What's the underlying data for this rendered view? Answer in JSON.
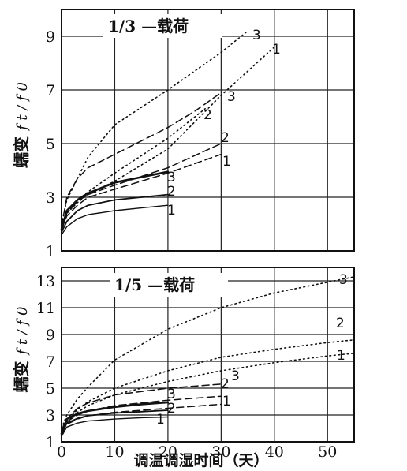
{
  "chart_data": [
    {
      "type": "line",
      "title": "1/3 —载荷",
      "ylabel": "蠕变 f_t / f_0",
      "ylabel_main": "蠕变",
      "ylabel_math": "f t / f 0",
      "xlim": [
        0,
        55
      ],
      "ylim": [
        1,
        10
      ],
      "yticks": [
        1,
        3,
        5,
        7,
        9
      ],
      "series": [
        {
          "name": "1",
          "style": "solid-thin",
          "x": [
            0,
            1,
            3,
            5,
            10,
            15,
            20
          ],
          "y": [
            1.6,
            1.9,
            2.2,
            2.35,
            2.5,
            2.6,
            2.7
          ]
        },
        {
          "name": "2",
          "style": "solid",
          "x": [
            0,
            1,
            3,
            5,
            10,
            15,
            20
          ],
          "y": [
            1.7,
            2.1,
            2.5,
            2.7,
            2.9,
            3.0,
            3.1
          ]
        },
        {
          "name": "3",
          "style": "solid-thick",
          "x": [
            0,
            1,
            3,
            5,
            10,
            15,
            20
          ],
          "y": [
            1.8,
            2.5,
            2.9,
            3.15,
            3.55,
            3.75,
            3.95
          ]
        },
        {
          "name": "1",
          "style": "dashed",
          "x": [
            0,
            1,
            3,
            5,
            10,
            20,
            30
          ],
          "y": [
            1.8,
            2.3,
            2.7,
            3.0,
            3.3,
            3.9,
            4.6
          ]
        },
        {
          "name": "2",
          "style": "dashed",
          "x": [
            0,
            1,
            3,
            5,
            10,
            20,
            30
          ],
          "y": [
            1.9,
            2.4,
            2.85,
            3.1,
            3.45,
            4.1,
            5.0
          ]
        },
        {
          "name": "3",
          "style": "dashed",
          "x": [
            0,
            1,
            3,
            5,
            10,
            15,
            20,
            25,
            30
          ],
          "y": [
            1.9,
            3.0,
            3.7,
            4.1,
            4.6,
            5.1,
            5.6,
            6.2,
            6.9
          ]
        },
        {
          "name": "1",
          "style": "dotted",
          "x": [
            0,
            1,
            3,
            5,
            10,
            20,
            30,
            40
          ],
          "y": [
            2.0,
            2.4,
            2.8,
            3.1,
            3.6,
            4.8,
            6.8,
            8.6
          ]
        },
        {
          "name": "2",
          "style": "dotted",
          "x": [
            0,
            1,
            3,
            5,
            10,
            20,
            27
          ],
          "y": [
            2.0,
            2.4,
            2.9,
            3.2,
            3.9,
            5.2,
            6.3
          ]
        },
        {
          "name": "3",
          "style": "dotted",
          "x": [
            0,
            1,
            3,
            5,
            10,
            20,
            30,
            35
          ],
          "y": [
            2.0,
            2.9,
            3.7,
            4.5,
            5.7,
            7.0,
            8.4,
            9.2
          ]
        }
      ],
      "annotations": [
        "1",
        "2",
        "3",
        "1",
        "2",
        "3",
        "2",
        "3",
        "1"
      ]
    },
    {
      "type": "line",
      "title": "1/5 —载荷",
      "ylabel": "蠕变 f_t / f_0",
      "ylabel_main": "蠕变",
      "ylabel_math": "f t / f 0",
      "xlabel": "调温调湿时间（天）",
      "xlim": [
        0,
        55
      ],
      "ylim": [
        1,
        14
      ],
      "xticks": [
        0,
        10,
        20,
        30,
        40,
        50
      ],
      "yticks": [
        1,
        3,
        5,
        7,
        9,
        11,
        13
      ],
      "series": [
        {
          "name": "1",
          "style": "solid-thin",
          "x": [
            0,
            1,
            3,
            5,
            10,
            15,
            20
          ],
          "y": [
            1.4,
            2.1,
            2.4,
            2.55,
            2.7,
            2.8,
            2.85
          ]
        },
        {
          "name": "2",
          "style": "solid",
          "x": [
            0,
            1,
            3,
            5,
            10,
            15,
            20
          ],
          "y": [
            1.5,
            2.4,
            2.75,
            2.95,
            3.15,
            3.25,
            3.35
          ]
        },
        {
          "name": "3",
          "style": "solid-thick",
          "x": [
            0,
            1,
            3,
            5,
            10,
            15,
            20
          ],
          "y": [
            1.6,
            2.7,
            3.1,
            3.3,
            3.6,
            3.8,
            3.95
          ]
        },
        {
          "name": "1",
          "style": "dashed",
          "x": [
            0,
            1,
            3,
            5,
            10,
            20,
            30
          ],
          "y": [
            1.7,
            2.3,
            2.7,
            2.95,
            3.2,
            3.5,
            3.8
          ]
        },
        {
          "name": "2",
          "style": "dashed",
          "x": [
            0,
            1,
            3,
            5,
            10,
            20,
            30
          ],
          "y": [
            1.8,
            2.5,
            3.0,
            3.3,
            3.7,
            4.1,
            4.4
          ]
        },
        {
          "name": "3",
          "style": "dashed",
          "x": [
            0,
            1,
            3,
            5,
            10,
            20,
            30
          ],
          "y": [
            1.9,
            2.7,
            3.5,
            3.9,
            4.5,
            5.0,
            5.3
          ]
        },
        {
          "name": "1",
          "style": "dotted",
          "x": [
            0,
            1,
            3,
            5,
            10,
            20,
            30,
            40,
            50,
            55
          ],
          "y": [
            2.0,
            2.5,
            3.2,
            3.7,
            4.5,
            5.5,
            6.3,
            6.9,
            7.4,
            7.6
          ]
        },
        {
          "name": "2",
          "style": "dotted",
          "x": [
            0,
            1,
            3,
            5,
            10,
            20,
            30,
            40,
            50,
            55
          ],
          "y": [
            2.0,
            2.6,
            3.4,
            4.0,
            5.0,
            6.3,
            7.3,
            7.9,
            8.4,
            8.6
          ]
        },
        {
          "name": "3",
          "style": "dotted",
          "x": [
            0,
            1,
            3,
            5,
            10,
            20,
            30,
            40,
            50,
            55
          ],
          "y": [
            2.0,
            3.0,
            4.2,
            5.1,
            7.1,
            9.4,
            11.0,
            12.1,
            12.9,
            13.3
          ]
        }
      ],
      "annotations": [
        "1",
        "2",
        "3",
        "1",
        "2",
        "3",
        "1",
        "2",
        "3"
      ]
    }
  ]
}
